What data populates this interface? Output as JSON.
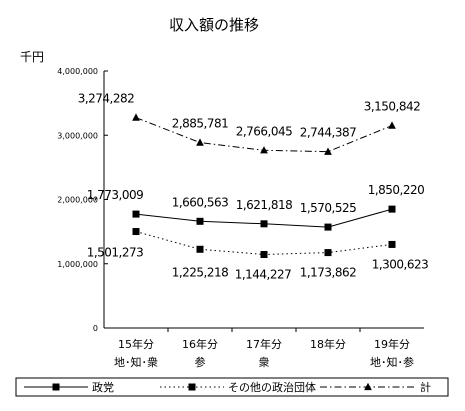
{
  "chart_data": {
    "type": "line",
    "title": "収入額の推移",
    "ylabel": "千円",
    "xlabel": "",
    "ylim": [
      0,
      4000000
    ],
    "yticks": [
      "4,000,000",
      "3,000,000",
      "2,000,000",
      "1,000,000",
      "0"
    ],
    "categories": [
      [
        "15年分",
        "地･知･衆"
      ],
      [
        "16年分",
        "参"
      ],
      [
        "17年分",
        "衆"
      ],
      [
        "18年分",
        ""
      ],
      [
        "19年分",
        "地･知･参"
      ]
    ],
    "grid": false,
    "legend_position": "bottom",
    "series": [
      {
        "name": "政党",
        "marker": "square",
        "line": "solid",
        "values": [
          1773009,
          1660563,
          1621818,
          1570525,
          1850220
        ],
        "labels": [
          "1,773,009",
          "1,660,563",
          "1,621,818",
          "1,570,525",
          "1,850,220"
        ]
      },
      {
        "name": "その他の政治団体",
        "marker": "square",
        "line": "dotted",
        "values": [
          1501273,
          1225218,
          1144227,
          1173862,
          1300623
        ],
        "labels": [
          "1,501,273",
          "1,225,218",
          "1,144,227",
          "1,173,862",
          "1,300,623"
        ]
      },
      {
        "name": "計",
        "marker": "triangle",
        "line": "dashdot",
        "values": [
          3274282,
          2885781,
          2766045,
          2744387,
          3150842
        ],
        "labels": [
          "3,274,282",
          "2,885,781",
          "2,766,045",
          "2,744,387",
          "3,150,842"
        ]
      }
    ]
  }
}
